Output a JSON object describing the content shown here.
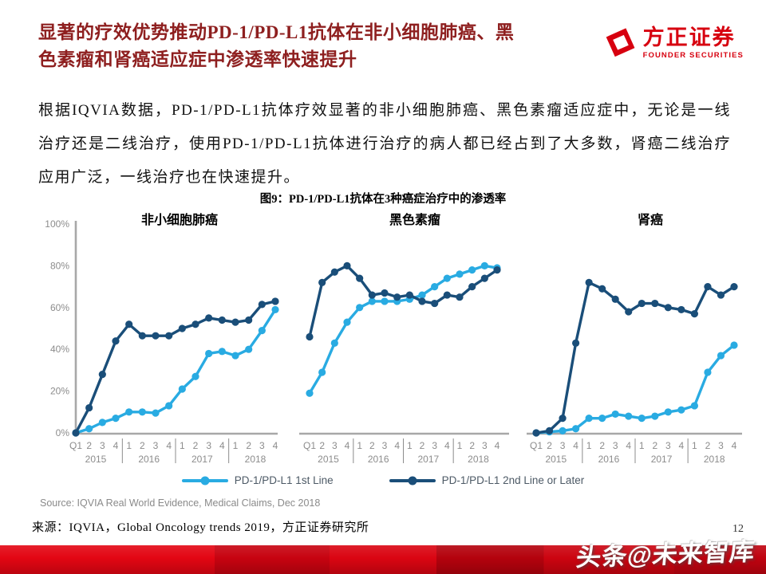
{
  "header": {
    "title": "显著的疗效优势推动PD-1/PD-L1抗体在非小细胞肺癌、黑色素瘤和肾癌适应症中渗透率快速提升",
    "logo_cn": "方正证券",
    "logo_en": "FOUNDER SECURITIES"
  },
  "body": {
    "paragraph": "根据IQVIA数据，PD-1/PD-L1抗体疗效显著的非小细胞肺癌、黑色素瘤适应症中，无论是一线治疗还是二线治疗，使用PD-1/PD-L1抗体进行治疗的病人都已经占到了大多数，肾癌二线治疗应用广泛，一线治疗也在快速提升。"
  },
  "figure": {
    "caption": "图9：PD-1/PD-L1抗体在3种癌症治疗中的渗透率"
  },
  "chart_data": {
    "type": "line",
    "categories": [
      "Q1",
      "2",
      "3",
      "4",
      "1",
      "2",
      "3",
      "4",
      "1",
      "2",
      "3",
      "4",
      "1",
      "2",
      "3",
      "4"
    ],
    "years": [
      "2015",
      "2016",
      "2017",
      "2018"
    ],
    "ylim": [
      0,
      100
    ],
    "ytick_values": [
      0,
      20,
      40,
      60,
      80,
      100
    ],
    "ytick_labels": [
      "0%",
      "20%",
      "40%",
      "60%",
      "80%",
      "100%"
    ],
    "grid": false,
    "legend_position": "bottom",
    "charts": [
      {
        "title": "非小细胞肺癌",
        "series": [
          {
            "name": "PD-1/PD-L1 1st Line",
            "color": "#29ABE2",
            "values": [
              0,
              2,
              5,
              7,
              10,
              10,
              9.5,
              13,
              21,
              27,
              38,
              39,
              37,
              40,
              49,
              59
            ]
          },
          {
            "name": "PD-1/PD-L1 2nd Line or Later",
            "color": "#1A4E79",
            "values": [
              0,
              12,
              28,
              44,
              52,
              46.5,
              46.5,
              46.5,
              50,
              52,
              55,
              54,
              53,
              54,
              61.5,
              63
            ]
          }
        ]
      },
      {
        "title": "黑色素瘤",
        "series": [
          {
            "name": "PD-1/PD-L1 1st Line",
            "color": "#29ABE2",
            "values": [
              19,
              29,
              43,
              53,
              60,
              63,
              63,
              63,
              64,
              66,
              70,
              74,
              76,
              78,
              80,
              79
            ]
          },
          {
            "name": "PD-1/PD-L1 2nd Line or Later",
            "color": "#1A4E79",
            "values": [
              46,
              72,
              77,
              80,
              74,
              66,
              67,
              65,
              66,
              63,
              62,
              66,
              65,
              70,
              74,
              78
            ]
          }
        ]
      },
      {
        "title": "肾癌",
        "series": [
          {
            "name": "PD-1/PD-L1 1st Line",
            "color": "#29ABE2",
            "values": [
              0,
              0.5,
              1,
              2,
              7,
              7,
              9,
              8,
              7,
              8,
              10,
              11,
              13,
              29,
              37,
              42
            ]
          },
          {
            "name": "PD-1/PD-L1 2nd Line or Later",
            "color": "#1A4E79",
            "values": [
              0,
              1,
              7,
              43,
              72,
              69,
              64,
              58,
              62,
              62,
              60,
              59,
              57,
              70,
              66,
              70
            ]
          }
        ]
      }
    ]
  },
  "legend": [
    {
      "label": "PD-1/PD-L1 1st Line",
      "color": "#29ABE2"
    },
    {
      "label": "PD-1/PD-L1 2nd Line or Later",
      "color": "#1A4E79"
    }
  ],
  "footer": {
    "source_en": "Source: IQVIA Real World Evidence, Medical Claims, Dec 2018",
    "source_cn": "来源：IQVIA，Global Oncology trends 2019，方正证券研究所",
    "page_number": "12",
    "watermark": "头条@未来智库"
  },
  "colors": {
    "title_red": "#8E1F1F",
    "brand_red": "#D7000F",
    "line_1st": "#29ABE2",
    "line_2nd": "#1A4E79",
    "axis_gray": "#A8A8A8",
    "label_gray": "#8C8C8C"
  }
}
